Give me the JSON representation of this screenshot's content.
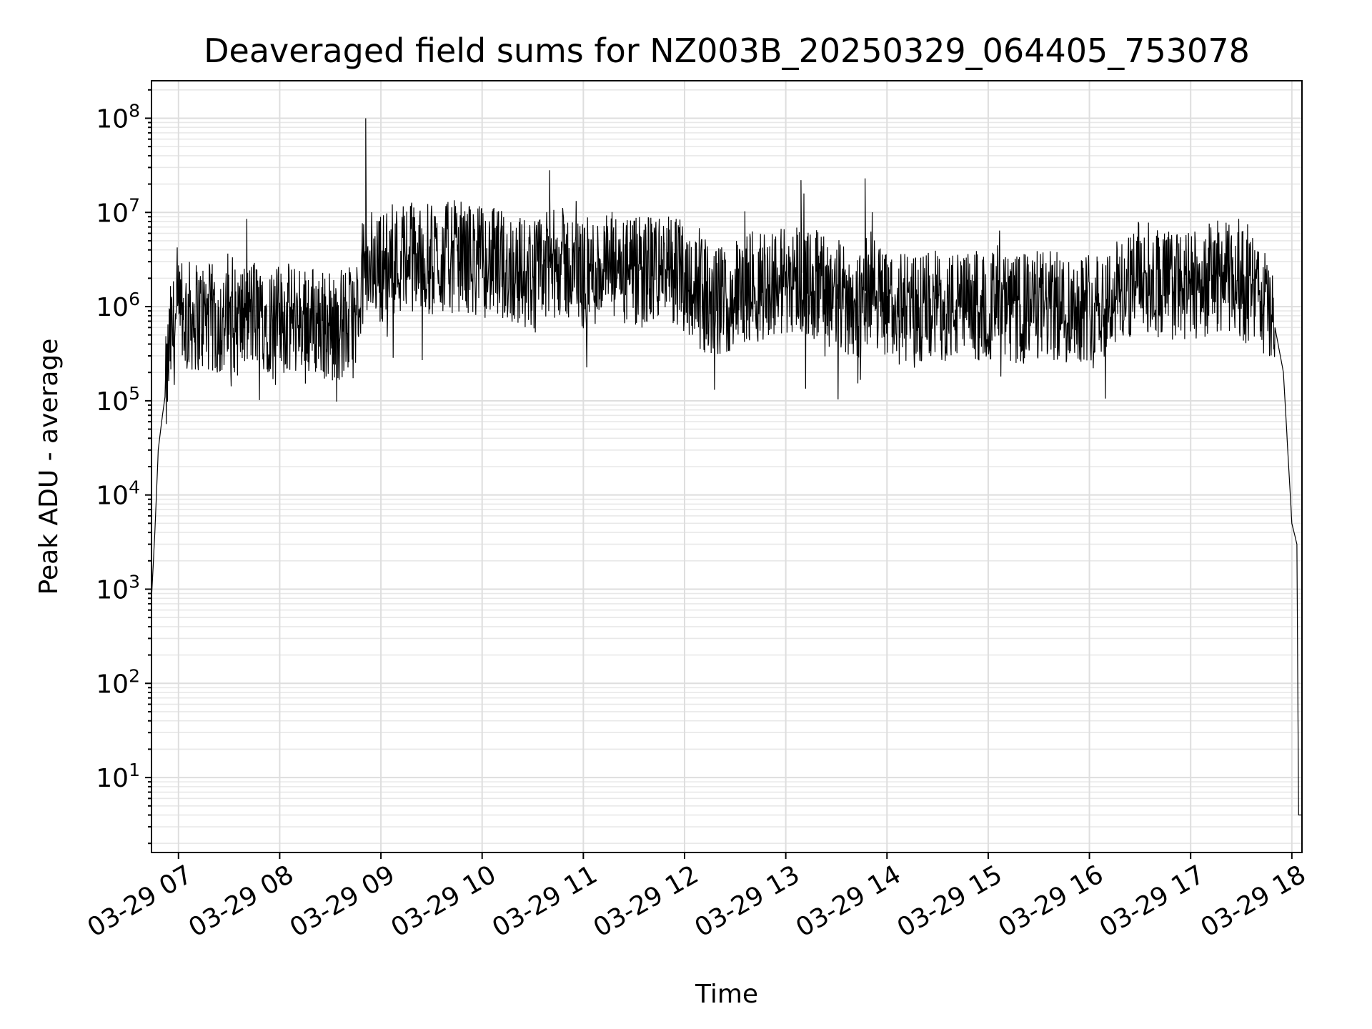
{
  "chart_data": {
    "type": "line",
    "title": "Deaveraged field sums for NZ003B_20250329_064405_753078",
    "xlabel": "Time",
    "ylabel": "Peak ADU - average",
    "yscale": "log",
    "xlim": [
      "2025-03-29T06:44",
      "2025-03-29T18:06"
    ],
    "ylim": [
      1.6,
      250000000
    ],
    "grid": true,
    "x_tick_labels": [
      "03-29 07",
      "03-29 08",
      "03-29 09",
      "03-29 10",
      "03-29 11",
      "03-29 12",
      "03-29 13",
      "03-29 14",
      "03-29 15",
      "03-29 16",
      "03-29 17",
      "03-29 18"
    ],
    "y_tick_labels": [
      {
        "base": "10",
        "exp": "1"
      },
      {
        "base": "10",
        "exp": "2"
      },
      {
        "base": "10",
        "exp": "3"
      },
      {
        "base": "10",
        "exp": "4"
      },
      {
        "base": "10",
        "exp": "5"
      },
      {
        "base": "10",
        "exp": "6"
      },
      {
        "base": "10",
        "exp": "7"
      },
      {
        "base": "10",
        "exp": "8"
      }
    ],
    "series": [
      {
        "color": "#000000",
        "x": [
          "06:44",
          "06:46",
          "06:48",
          "06:50",
          "06:52",
          "06:55",
          "06:58",
          "07:00",
          "07:05",
          "07:15",
          "07:30",
          "07:45",
          "08:00",
          "08:15",
          "08:30",
          "08:45",
          "08:50",
          "08:52",
          "08:55",
          "09:00",
          "09:15",
          "09:30",
          "09:45",
          "10:00",
          "10:15",
          "10:30",
          "10:40",
          "10:45",
          "11:00",
          "11:15",
          "11:30",
          "11:45",
          "12:00",
          "12:15",
          "12:30",
          "12:45",
          "13:00",
          "13:05",
          "13:15",
          "13:30",
          "13:45",
          "13:50",
          "14:00",
          "14:15",
          "14:30",
          "14:45",
          "15:00",
          "15:15",
          "15:30",
          "15:45",
          "16:00",
          "16:15",
          "16:30",
          "16:45",
          "17:00",
          "17:15",
          "17:30",
          "17:40",
          "17:45",
          "17:50",
          "17:55",
          "18:00",
          "18:03",
          "18:04",
          "18:06"
        ],
        "y": [
          800,
          4000,
          30000,
          60000,
          110000,
          500000,
          700000,
          800000,
          900000,
          900000,
          700000,
          1000000,
          800000,
          900000,
          700000,
          800000,
          3000000,
          2500000,
          3500000,
          3000000,
          4000000,
          3500000,
          4000000,
          3500000,
          3000000,
          2500000,
          3000000,
          3500000,
          2500000,
          3000000,
          2500000,
          3000000,
          2500000,
          1200000,
          1500000,
          2000000,
          2200000,
          2500000,
          2000000,
          1500000,
          1200000,
          2000000,
          1200000,
          1000000,
          1200000,
          1100000,
          1200000,
          1000000,
          1200000,
          1100000,
          1200000,
          1500000,
          2500000,
          2000000,
          1800000,
          2500000,
          2000000,
          1500000,
          1200000,
          600000,
          200000,
          5000,
          3000,
          4,
          4
        ]
      }
    ]
  }
}
